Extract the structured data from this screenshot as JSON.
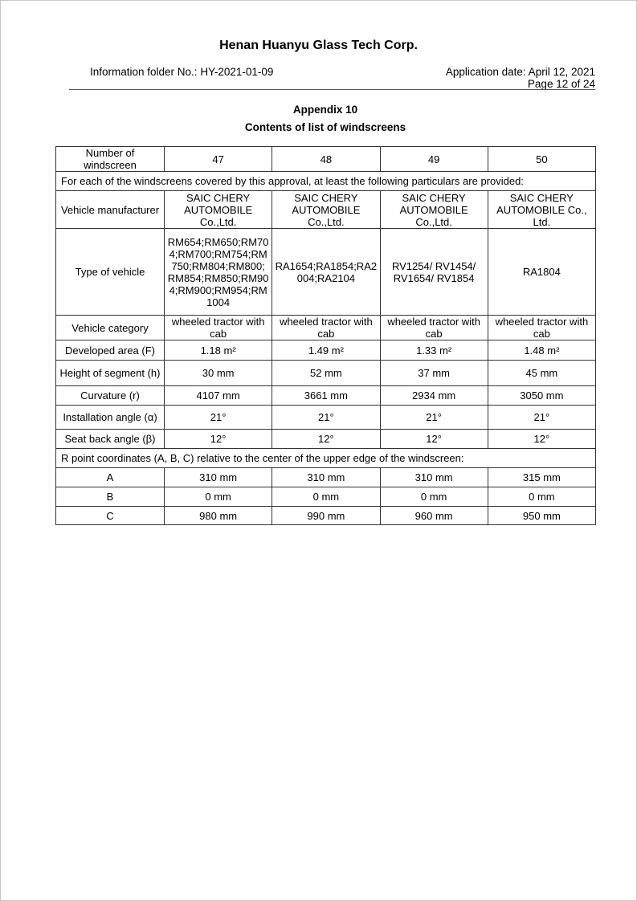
{
  "header": {
    "company": "Henan Huanyu Glass Tech Corp.",
    "folder_no": "Information folder No.: HY-2021-01-09",
    "application_date": "Application date: April 12, 2021",
    "page": "Page 12 of 24"
  },
  "title": {
    "appendix": "Appendix 10",
    "subtitle": "Contents of list of windscreens"
  },
  "table": {
    "rows": [
      {
        "label": "Number of windscreen",
        "cells": [
          "47",
          "48",
          "49",
          "50"
        ]
      },
      {
        "span": "For each of the windscreens covered by this approval, at least the following particulars are provided:"
      },
      {
        "label": "Vehicle manufacturer",
        "cells": [
          "SAIC CHERY AUTOMOBILE Co.,Ltd.",
          "SAIC CHERY AUTOMOBILE Co.,Ltd.",
          "SAIC CHERY AUTOMOBILE Co.,Ltd.",
          "SAIC CHERY AUTOMOBILE Co., Ltd."
        ]
      },
      {
        "label": "Type of vehicle",
        "cells": [
          "RM654;RM650;RM704;RM700;RM754;RM750;RM804;RM800; RM854;RM850;RM904;RM900;RM954;RM1004",
          "RA1654;RA1854;RA2004;RA2104",
          "RV1254/ RV1454/ RV1654/ RV1854",
          "RA1804"
        ]
      },
      {
        "label": "Vehicle category",
        "cells": [
          "wheeled tractor with cab",
          "wheeled tractor with cab",
          "wheeled tractor with cab",
          "wheeled tractor with cab"
        ]
      },
      {
        "label": "Developed area (F)",
        "cells": [
          "1.18 m²",
          "1.49 m²",
          "1.33 m²",
          "1.48 m²"
        ]
      },
      {
        "label": "Height of segment (h)",
        "cells": [
          "30 mm",
          "52 mm",
          "37 mm",
          "45 mm"
        ]
      },
      {
        "label": "Curvature (r)",
        "cells": [
          "4107 mm",
          "3661 mm",
          "2934 mm",
          "3050 mm"
        ]
      },
      {
        "label": "Installation angle (α)",
        "cells": [
          "21°",
          "21°",
          "21°",
          "21°"
        ]
      },
      {
        "label": "Seat back angle (β)",
        "cells": [
          "12°",
          "12°",
          "12°",
          "12°"
        ]
      },
      {
        "span": "R point coordinates (A, B, C) relative to the center of the upper edge of the windscreen:"
      },
      {
        "label": "A",
        "cells": [
          "310 mm",
          "310 mm",
          "310 mm",
          "315 mm"
        ]
      },
      {
        "label": "B",
        "cells": [
          "0 mm",
          "0 mm",
          "0 mm",
          "0 mm"
        ]
      },
      {
        "label": "C",
        "cells": [
          "980 mm",
          "990 mm",
          "960 mm",
          "950 mm"
        ]
      }
    ]
  }
}
